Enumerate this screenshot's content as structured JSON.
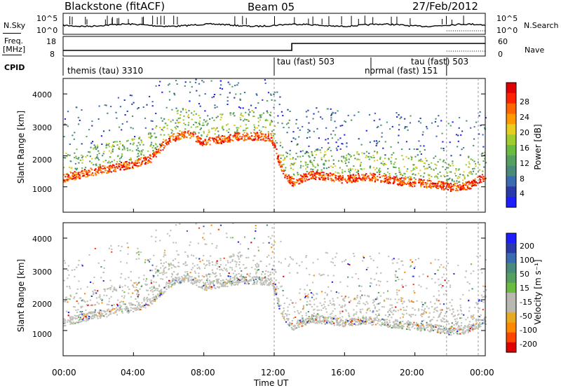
{
  "header": {
    "station": "Blackstone (fitACF)",
    "beam": "Beam 05",
    "date": "27/Feb/2012"
  },
  "strip": {
    "nsky_label": "N.Sky",
    "nsky_ticks": [
      "10^5",
      "10^0"
    ],
    "nsearch_label": "N.Search",
    "nsearch_ticks": [
      "10^5",
      "10^0"
    ],
    "freq_label": "Freq.",
    "freq_unit": "[MHz]",
    "freq_ticks": [
      "18",
      "8"
    ],
    "nave_label": "Nave",
    "nave_ticks": [
      "60",
      "0"
    ],
    "cpid_label": "CPID"
  },
  "cpid_segments": [
    {
      "label": "themis (tau) 3310",
      "start_hour": 0
    },
    {
      "label": "tau (fast) 503",
      "start_hour": 12.0
    },
    {
      "label": "normal (fast) 151",
      "start_hour": 17.5
    },
    {
      "label": "tau (fast) 503",
      "start_hour": 21.8
    }
  ],
  "colors": {
    "power": [
      "#1e1eff",
      "#2a3aa8",
      "#3a6ab0",
      "#4a8a7a",
      "#55a060",
      "#6abb40",
      "#a0cc30",
      "#e8cc20",
      "#ff9900",
      "#ff6600",
      "#ff2200",
      "#e00000"
    ],
    "velocity": [
      "#1e1eff",
      "#2a3aa8",
      "#3a6ab0",
      "#4a8a7a",
      "#55a060",
      "#6abb40",
      "#b8b8b0",
      "#b8b8b0",
      "#e8aa20",
      "#ff8800",
      "#ff4400",
      "#e00000"
    ]
  },
  "chart_data": [
    {
      "type": "heatmap",
      "quantity": "Power",
      "ylabel": "Slant Range [km]",
      "yticks": [
        "4000",
        "3000",
        "2000",
        "1000"
      ],
      "colorbar_label": "Power [dB]",
      "colorbar_ticks": [
        "28",
        "24",
        "20",
        "16",
        "12",
        "8",
        "4"
      ],
      "ylim": [
        180,
        4500
      ],
      "main_echo_km": [
        [
          0,
          1250
        ],
        [
          2,
          1500
        ],
        [
          4,
          1700
        ],
        [
          5,
          1900
        ],
        [
          6,
          2500
        ],
        [
          7,
          2700
        ],
        [
          8,
          2400
        ],
        [
          9,
          2500
        ],
        [
          10,
          2600
        ],
        [
          11,
          2600
        ],
        [
          11.8,
          2550
        ],
        [
          12.5,
          1400
        ],
        [
          13,
          1100
        ],
        [
          14,
          1350
        ],
        [
          15,
          1300
        ],
        [
          16,
          1200
        ],
        [
          17,
          1300
        ],
        [
          18,
          1250
        ],
        [
          19,
          1150
        ],
        [
          20,
          1100
        ],
        [
          21,
          1050
        ],
        [
          22,
          950
        ],
        [
          23,
          1000
        ],
        [
          24,
          1300
        ]
      ]
    },
    {
      "type": "heatmap",
      "quantity": "Velocity",
      "xlabel": "Time UT",
      "ylabel": "Slant Range [km]",
      "xticks": [
        "00:00",
        "04:00",
        "08:00",
        "12:00",
        "16:00",
        "20:00",
        "00:00"
      ],
      "yticks": [
        "4000",
        "3000",
        "2000",
        "1000"
      ],
      "colorbar_label": "Velocity [m s⁻¹]",
      "colorbar_ticks": [
        "200",
        "100",
        "50",
        "15",
        "-15",
        "-50",
        "-100",
        "-200"
      ],
      "ylim": [
        180,
        4500
      ],
      "xlim": [
        0,
        24
      ]
    }
  ]
}
